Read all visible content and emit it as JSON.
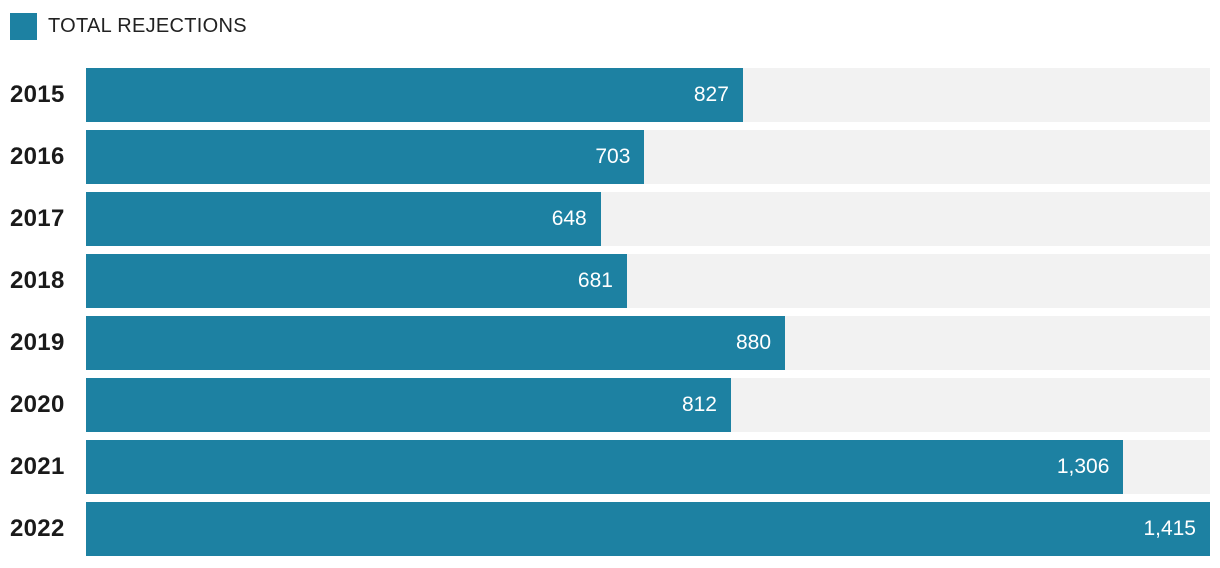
{
  "legend": {
    "label": "TOTAL REJECTIONS"
  },
  "colors": {
    "bar": "#1d81a2",
    "track": "#f2f2f2",
    "year_label": "#1a1a1a",
    "value_label": "#ffffff"
  },
  "chart_data": {
    "type": "bar",
    "orientation": "horizontal",
    "title": "",
    "series_name": "TOTAL REJECTIONS",
    "categories": [
      "2015",
      "2016",
      "2017",
      "2018",
      "2019",
      "2020",
      "2021",
      "2022"
    ],
    "values": [
      827,
      703,
      648,
      681,
      880,
      812,
      1306,
      1415
    ],
    "value_labels": [
      "827",
      "703",
      "648",
      "681",
      "880",
      "812",
      "1,306",
      "1,415"
    ],
    "xlim": [
      0,
      1415
    ],
    "grid": false,
    "legend_position": "top-left",
    "value_label_position": "inside-end"
  }
}
